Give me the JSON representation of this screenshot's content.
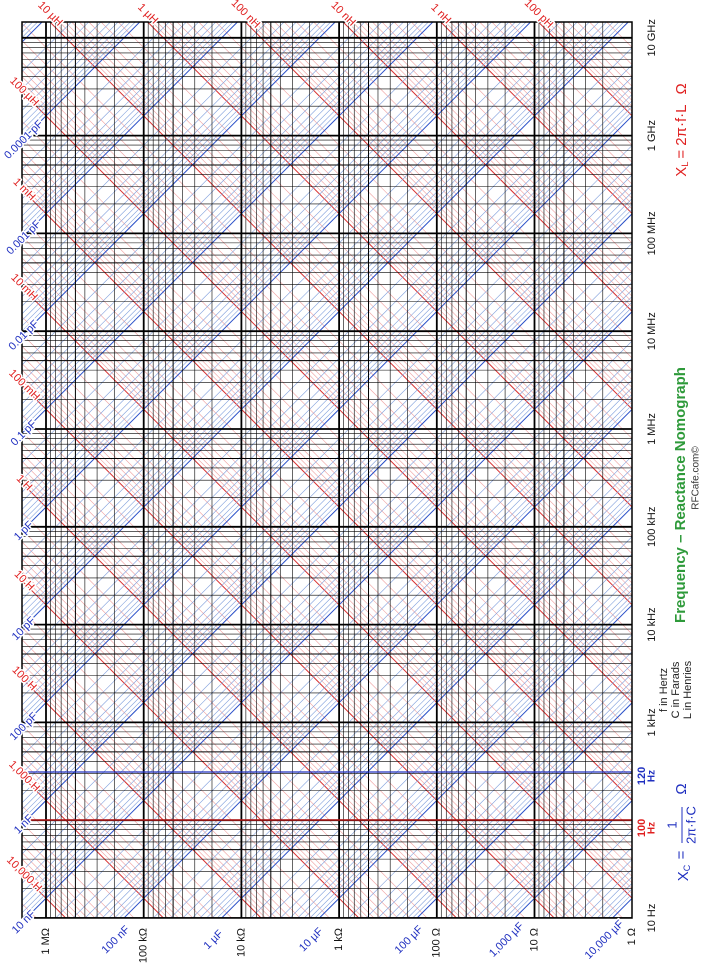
{
  "title": "Frequency – Reactance Nomograph",
  "credit": "RFCafe.com©",
  "inductance_formula": {
    "symbol": "X",
    "subscript": "L",
    "expression": "= 2π·f·L",
    "unit": "Ω"
  },
  "capacitance_formula": {
    "symbol": "X",
    "subscript": "C",
    "equals": "=",
    "numerator": "1",
    "denominator": "2π·f·C",
    "unit": "Ω"
  },
  "units_note": [
    "f in Hertz",
    "C in Farads",
    "L in Henries"
  ],
  "frequency_labels": [
    "10 Hz",
    "1 kHz",
    "10 kHz",
    "100 kHz",
    "1 MHz",
    "10 MHz",
    "100 MHz",
    "1 GHz",
    "10 GHz"
  ],
  "markers": [
    {
      "number": "100",
      "unit": "Hz"
    },
    {
      "number": "120",
      "unit": "Hz"
    }
  ],
  "resistance_labels": [
    "1 MΩ",
    "100 kΩ",
    "10 kΩ",
    "1 kΩ",
    "100 Ω",
    "10 Ω",
    "1 Ω"
  ],
  "inductance_labels_top": [
    "10 µH",
    "1 µH",
    "100 nH",
    "10 nH",
    "1 nH",
    "100 pH"
  ],
  "inductance_labels_left": [
    "100 µH",
    "1 mH",
    "10 mH",
    "100 mH",
    "1 H",
    "10 H",
    "100 H",
    "1,000 H",
    "10,000 H"
  ],
  "capacitance_labels_left": [
    "0.0001 pF",
    "0.001 pF",
    "0.01 pF",
    "0.1 pF",
    "1 pF",
    "10 pF",
    "100 pF",
    "1 nF",
    "10 nF"
  ],
  "capacitance_labels_bottom": [
    "100 nF",
    "1 µF",
    "10 µF",
    "100 µF",
    "1,000 µF",
    "10,000 µF"
  ]
}
